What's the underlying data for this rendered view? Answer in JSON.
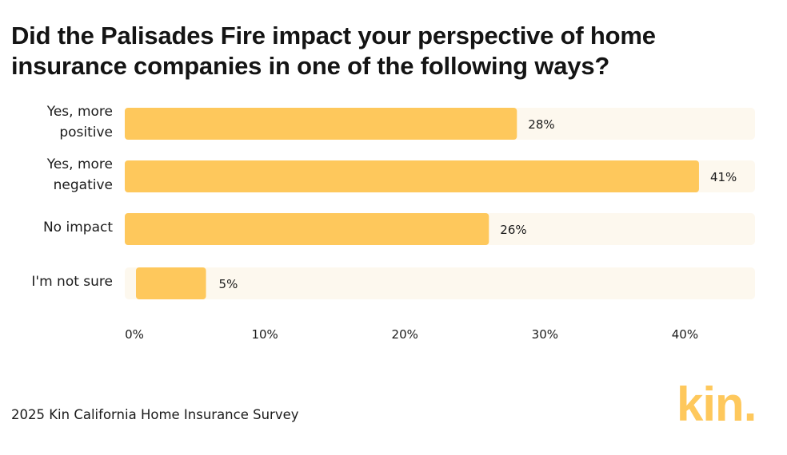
{
  "header": {
    "title": "Did the Palisades Fire impact your perspective of home insurance companies in one of the following ways?"
  },
  "chart_data": {
    "type": "bar",
    "orientation": "horizontal",
    "title": "Did the Palisades Fire impact your perspective of home insurance companies in one of the following ways?",
    "categories": [
      [
        "Yes, more",
        "positive"
      ],
      [
        "Yes, more",
        "negative"
      ],
      [
        "No impact"
      ],
      [
        "I'm not sure"
      ]
    ],
    "values": [
      28,
      41,
      26,
      5
    ],
    "value_labels": [
      "28%",
      "41%",
      "26%",
      "5%"
    ],
    "xlim": [
      0,
      45
    ],
    "xticks": [
      0,
      10,
      20,
      30,
      40
    ],
    "xtick_labels": [
      "0%",
      "10%",
      "20%",
      "30%",
      "40%"
    ],
    "xlabel": "",
    "ylabel": "",
    "grid": false,
    "colors": {
      "bar": "#fec85c",
      "track": "#fdf8ee",
      "text": "#1b1b1b"
    }
  },
  "footer": {
    "source": "2025 Kin California Home Insurance Survey",
    "logo_text": "kin."
  }
}
